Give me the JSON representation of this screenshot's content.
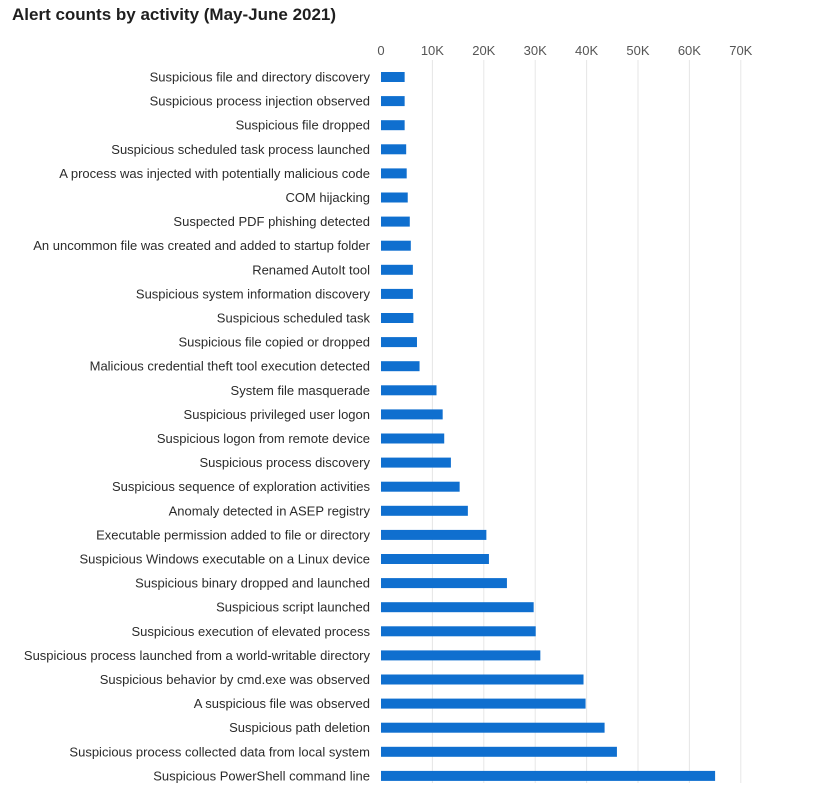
{
  "chart_data": {
    "type": "bar",
    "orientation": "horizontal",
    "title": "Alert counts by activity (May-June 2021)",
    "xlabel": "",
    "ylabel": "",
    "xlim": [
      0,
      70000
    ],
    "x_ticks": [
      0,
      10000,
      20000,
      30000,
      40000,
      50000,
      60000,
      70000
    ],
    "x_tick_labels": [
      "0",
      "10K",
      "20K",
      "30K",
      "40K",
      "50K",
      "60K",
      "70K"
    ],
    "axis_position": "top",
    "grid": true,
    "bar_color": "#0f6fcf",
    "categories": [
      "Suspicious file and directory discovery",
      "Suspicious process injection observed",
      "Suspicious file dropped",
      "Suspicious scheduled task process launched",
      "A process was injected with potentially malicious code",
      "COM hijacking ",
      "Suspected PDF phishing detected",
      "An uncommon file was created and added to startup folder",
      "Renamed AutoIt tool",
      "Suspicious system information discovery",
      "Suspicious scheduled task",
      "Suspicious file copied or dropped",
      "Malicious credential theft tool execution detected",
      "System file masquerade",
      "Suspicious privileged user logon",
      "Suspicious logon from remote device",
      "Suspicious process discovery",
      "Suspicious sequence of exploration activities",
      "Anomaly detected in ASEP registry",
      "Executable permission added to file or directory",
      "Suspicious Windows executable on a Linux device",
      "Suspicious binary dropped and launched",
      "Suspicious script launched",
      "Suspicious execution of elevated process",
      "Suspicious process launched from a world-writable directory",
      "Suspicious behavior by cmd.exe was observed",
      "A suspicious file was observed",
      "Suspicious path deletion",
      "Suspicious process collected data from local system",
      "Suspicious PowerShell command line"
    ],
    "values": [
      4600,
      4600,
      4600,
      4900,
      5000,
      5200,
      5600,
      5800,
      6200,
      6200,
      6300,
      7000,
      7500,
      10800,
      12000,
      12300,
      13600,
      15300,
      16900,
      20500,
      21000,
      24500,
      29700,
      30100,
      31000,
      39400,
      39800,
      43500,
      45900,
      65000
    ]
  }
}
